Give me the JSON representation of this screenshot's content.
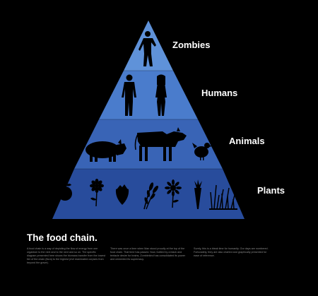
{
  "diagram": {
    "tiers": [
      {
        "id": "zombies",
        "label": "Zombies"
      },
      {
        "id": "humans",
        "label": "Humans"
      },
      {
        "id": "animals",
        "label": "Animals"
      },
      {
        "id": "plants",
        "label": "Plants"
      }
    ],
    "colors": {
      "background": "#000000",
      "tier_zombies": "#5f92d9",
      "tier_humans": "#4a7ccc",
      "tier_animals": "#3964b6",
      "tier_plants": "#284c9c",
      "silhouette": "#000000",
      "label": "#ffffff",
      "body_text": "#8a8a8a"
    },
    "icons": [
      "zombie-icon",
      "man-icon",
      "woman-icon",
      "pig-icon",
      "cow-icon",
      "chicken-icon",
      "apple-icon",
      "flower-icon",
      "strawberry-icon",
      "wheat-icon",
      "sunflower-icon",
      "carrot-icon",
      "grass-icon"
    ]
  },
  "footer": {
    "title": "The food chain.",
    "columns": [
      "A food chain is a way of depicting the flow of energy from one organism to the next and to the next and so on. The specific diagram presented here shows the biomass transfer from the lowest tier of the chain (flora) to the highest (evil reanimated corpses from beyond the grave).",
      "There was once a time when Man stood proudly at the top of the food chain. That time has passed. Now, fuelled by a black and tentacle desire for brains, Zombiekind has consolidated its power and cemented its supremacy.",
      "Surely, this is a bleak time for humanity. Our days are numbered. Fortunately, they are also charted and graphically presented for ease of reference."
    ]
  }
}
